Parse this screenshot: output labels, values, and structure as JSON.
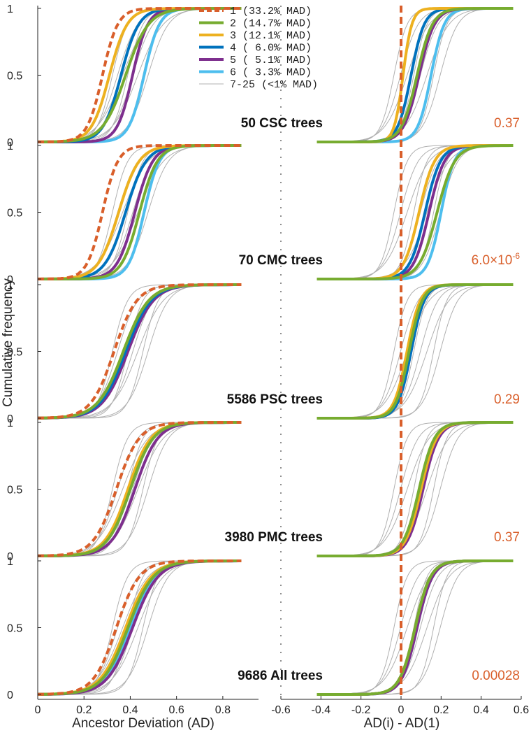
{
  "chart_data": {
    "type": "line",
    "ylabel": "Cumulative frequency",
    "left_xlabel": "Ancestor Deviation (AD)",
    "right_xlabel": "AD(i) - AD(1)",
    "left_xticks": [
      "0",
      "0.2",
      "0.4",
      "0.6",
      "0.8"
    ],
    "left_xtick_values": [
      0,
      0.2,
      0.4,
      0.6,
      0.8
    ],
    "right_xticks": [
      "-0.6",
      "-0.4",
      "-0.2",
      "0",
      "0.2",
      "0.4",
      "0.6"
    ],
    "right_xtick_values": [
      -0.6,
      -0.4,
      -0.2,
      0,
      0.2,
      0.4,
      0.6
    ],
    "left_xlim": [
      0,
      0.9
    ],
    "right_xlim": [
      -0.6,
      0.6
    ],
    "ylim": [
      0,
      1
    ],
    "ytick_labels": [
      "0",
      "0.5",
      "1"
    ],
    "ytick_values": [
      0,
      0.5,
      1
    ],
    "legend": {
      "placement": "top-center",
      "entries": [
        {
          "label": "1 (33.2% MAD)",
          "color": "#d95f2b",
          "dashed": true,
          "bold": true
        },
        {
          "label": "2 (14.7% MAD)",
          "color": "#77ac30",
          "dashed": false,
          "bold": true
        },
        {
          "label": "3 (12.1% MAD)",
          "color": "#edb120",
          "dashed": false,
          "bold": true
        },
        {
          "label": "4 ( 6.0% MAD)",
          "color": "#0072bd",
          "dashed": false,
          "bold": true
        },
        {
          "label": "5 ( 5.1% MAD)",
          "color": "#7e2f8e",
          "dashed": false,
          "bold": true
        },
        {
          "label": "6 ( 3.3% MAD)",
          "color": "#4dbeee",
          "dashed": false,
          "bold": true
        },
        {
          "label": "7-25 (<1% MAD)",
          "color": "#b0b0b0",
          "dashed": false,
          "bold": false
        }
      ]
    },
    "panels": [
      {
        "label": "50 CSC trees",
        "pvalue": "0.37",
        "left_medians": [
          0.28,
          0.38,
          0.31,
          0.36,
          0.41,
          0.46
        ],
        "left_spreads": [
          0.06,
          0.09,
          0.07,
          0.07,
          0.06,
          0.06
        ],
        "right_medians": [
          0.02,
          0.08,
          0.01,
          0.05,
          0.09,
          0.15
        ],
        "right_spreads": [
          0.06,
          0.07,
          0.04,
          0.06,
          0.07,
          0.06
        ]
      },
      {
        "label": "70 CMC trees",
        "pvalue": "6.0×10",
        "pvalue_exp": "-6",
        "left_medians": [
          0.28,
          0.44,
          0.35,
          0.38,
          0.42,
          0.46
        ],
        "left_spreads": [
          0.06,
          0.07,
          0.08,
          0.08,
          0.07,
          0.06
        ],
        "right_medians": [
          0.0,
          0.18,
          0.09,
          0.12,
          0.14,
          0.2
        ],
        "right_spreads": [
          0.06,
          0.08,
          0.07,
          0.07,
          0.07,
          0.06
        ]
      },
      {
        "label": "5586 PSC trees",
        "pvalue": "0.29",
        "left_medians": [
          0.33,
          0.37,
          0.37,
          0.38,
          0.39,
          0.38
        ],
        "left_spreads": [
          0.09,
          0.1,
          0.1,
          0.1,
          0.1,
          0.1
        ],
        "right_medians": [
          0.0,
          0.04,
          0.03,
          0.05,
          0.05,
          0.05
        ],
        "right_spreads": [
          0.04,
          0.06,
          0.06,
          0.06,
          0.06,
          0.06
        ]
      },
      {
        "label": "3980 PMC trees",
        "pvalue": "0.37",
        "left_medians": [
          0.34,
          0.4,
          0.39,
          0.4,
          0.42,
          0.4
        ],
        "left_spreads": [
          0.09,
          0.09,
          0.09,
          0.09,
          0.09,
          0.09
        ],
        "right_medians": [
          0.0,
          0.09,
          0.1,
          0.1,
          0.11,
          0.1
        ],
        "right_spreads": [
          0.04,
          0.07,
          0.07,
          0.07,
          0.07,
          0.07
        ]
      },
      {
        "label": "9686 All trees",
        "pvalue": "0.00028",
        "left_medians": [
          0.34,
          0.39,
          0.38,
          0.39,
          0.41,
          0.4
        ],
        "left_spreads": [
          0.09,
          0.1,
          0.1,
          0.1,
          0.1,
          0.1
        ],
        "right_medians": [
          0.0,
          0.07,
          0.07,
          0.07,
          0.08,
          0.08
        ],
        "right_spreads": [
          0.04,
          0.07,
          0.07,
          0.07,
          0.07,
          0.07
        ]
      }
    ]
  }
}
